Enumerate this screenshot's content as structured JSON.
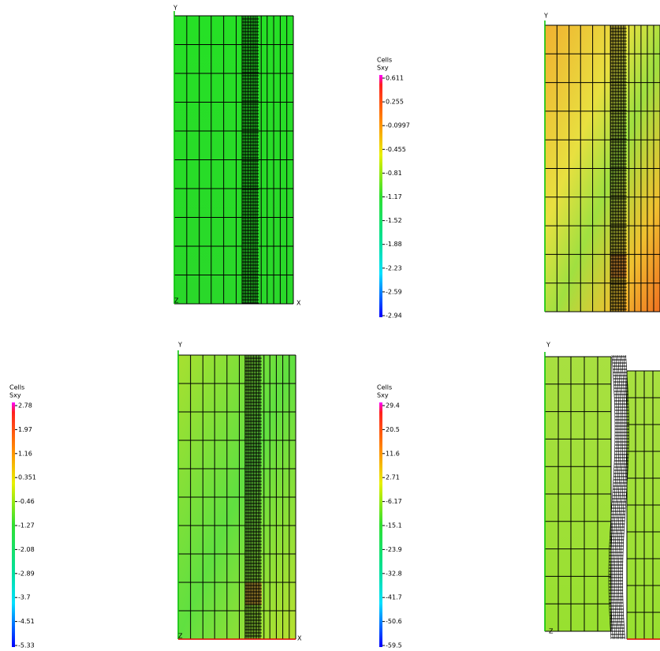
{
  "panels": [
    {
      "axis_labels": [
        "Y",
        "Z",
        "X"
      ]
    },
    {
      "axis_labels": [
        "Y"
      ]
    },
    {
      "axis_labels": [
        "Y",
        "Z",
        "X"
      ]
    },
    {
      "axis_labels": [
        "Y",
        "Z"
      ]
    }
  ],
  "colorbars": [
    {
      "title": "Cells",
      "variable": "Sxy",
      "ticks": [
        "0.611",
        "0.255",
        "-0.0997",
        "-0.455",
        "-0.81",
        "-1.17",
        "-1.52",
        "-1.88",
        "-2.23",
        "-2.59",
        "-2.94"
      ]
    },
    {
      "title": "Cells",
      "variable": "Sxy",
      "ticks": [
        "2.78",
        "1.97",
        "1.16",
        "0.351",
        "-0.46",
        "-1.27",
        "-2.08",
        "-2.89",
        "-3.7",
        "-4.51",
        "-5.33"
      ]
    },
    {
      "title": "Cells",
      "variable": "Sxy",
      "ticks": [
        "29.4",
        "20.5",
        "11.6",
        "2.71",
        "-6.17",
        "-15.1",
        "-23.9",
        "-32.8",
        "-41.7",
        "-50.6",
        "-59.5"
      ]
    }
  ]
}
